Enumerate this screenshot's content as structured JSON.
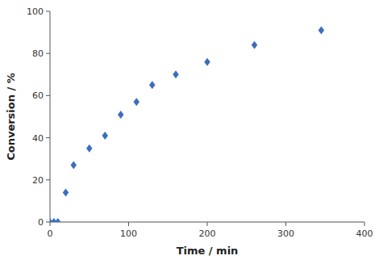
{
  "chart_data": {
    "type": "scatter",
    "x": [
      0,
      5,
      10,
      20,
      30,
      50,
      70,
      90,
      110,
      130,
      160,
      200,
      260,
      345
    ],
    "values": [
      0,
      0,
      0,
      14,
      27,
      35,
      41,
      51,
      57,
      65,
      70,
      76,
      84,
      91
    ],
    "color": "#3a6fbd",
    "marker": "diamond",
    "xlabel": "Time / min",
    "ylabel": "Conversion / %",
    "xlim": [
      0,
      400
    ],
    "ylim": [
      0,
      100
    ],
    "xticks": [
      0,
      100,
      200,
      300,
      400
    ],
    "yticks": [
      0,
      20,
      40,
      60,
      80,
      100
    ]
  }
}
